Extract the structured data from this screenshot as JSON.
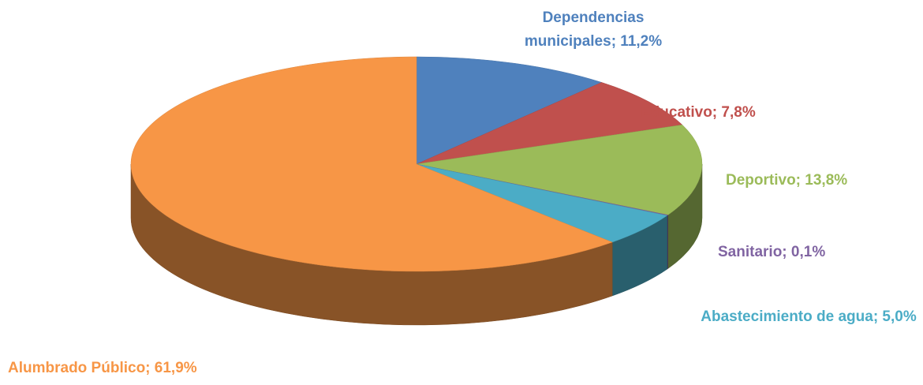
{
  "chart_data": {
    "type": "pie",
    "values": [
      11.2,
      7.8,
      13.8,
      0.1,
      5.0,
      61.9
    ],
    "value_labels": [
      "Dependencias municipales; 11,2%",
      "Educativo; 7,8%",
      "Deportivo; 13,8%",
      "Sanitario; 0,1%",
      "Abastecimiento de agua; 5,0%",
      "Alumbrado Público; 61,9%"
    ],
    "colors": [
      "#4f81bd",
      "#c0504d",
      "#9bbb59",
      "#8064a2",
      "#4bacc6",
      "#f79646"
    ]
  }
}
